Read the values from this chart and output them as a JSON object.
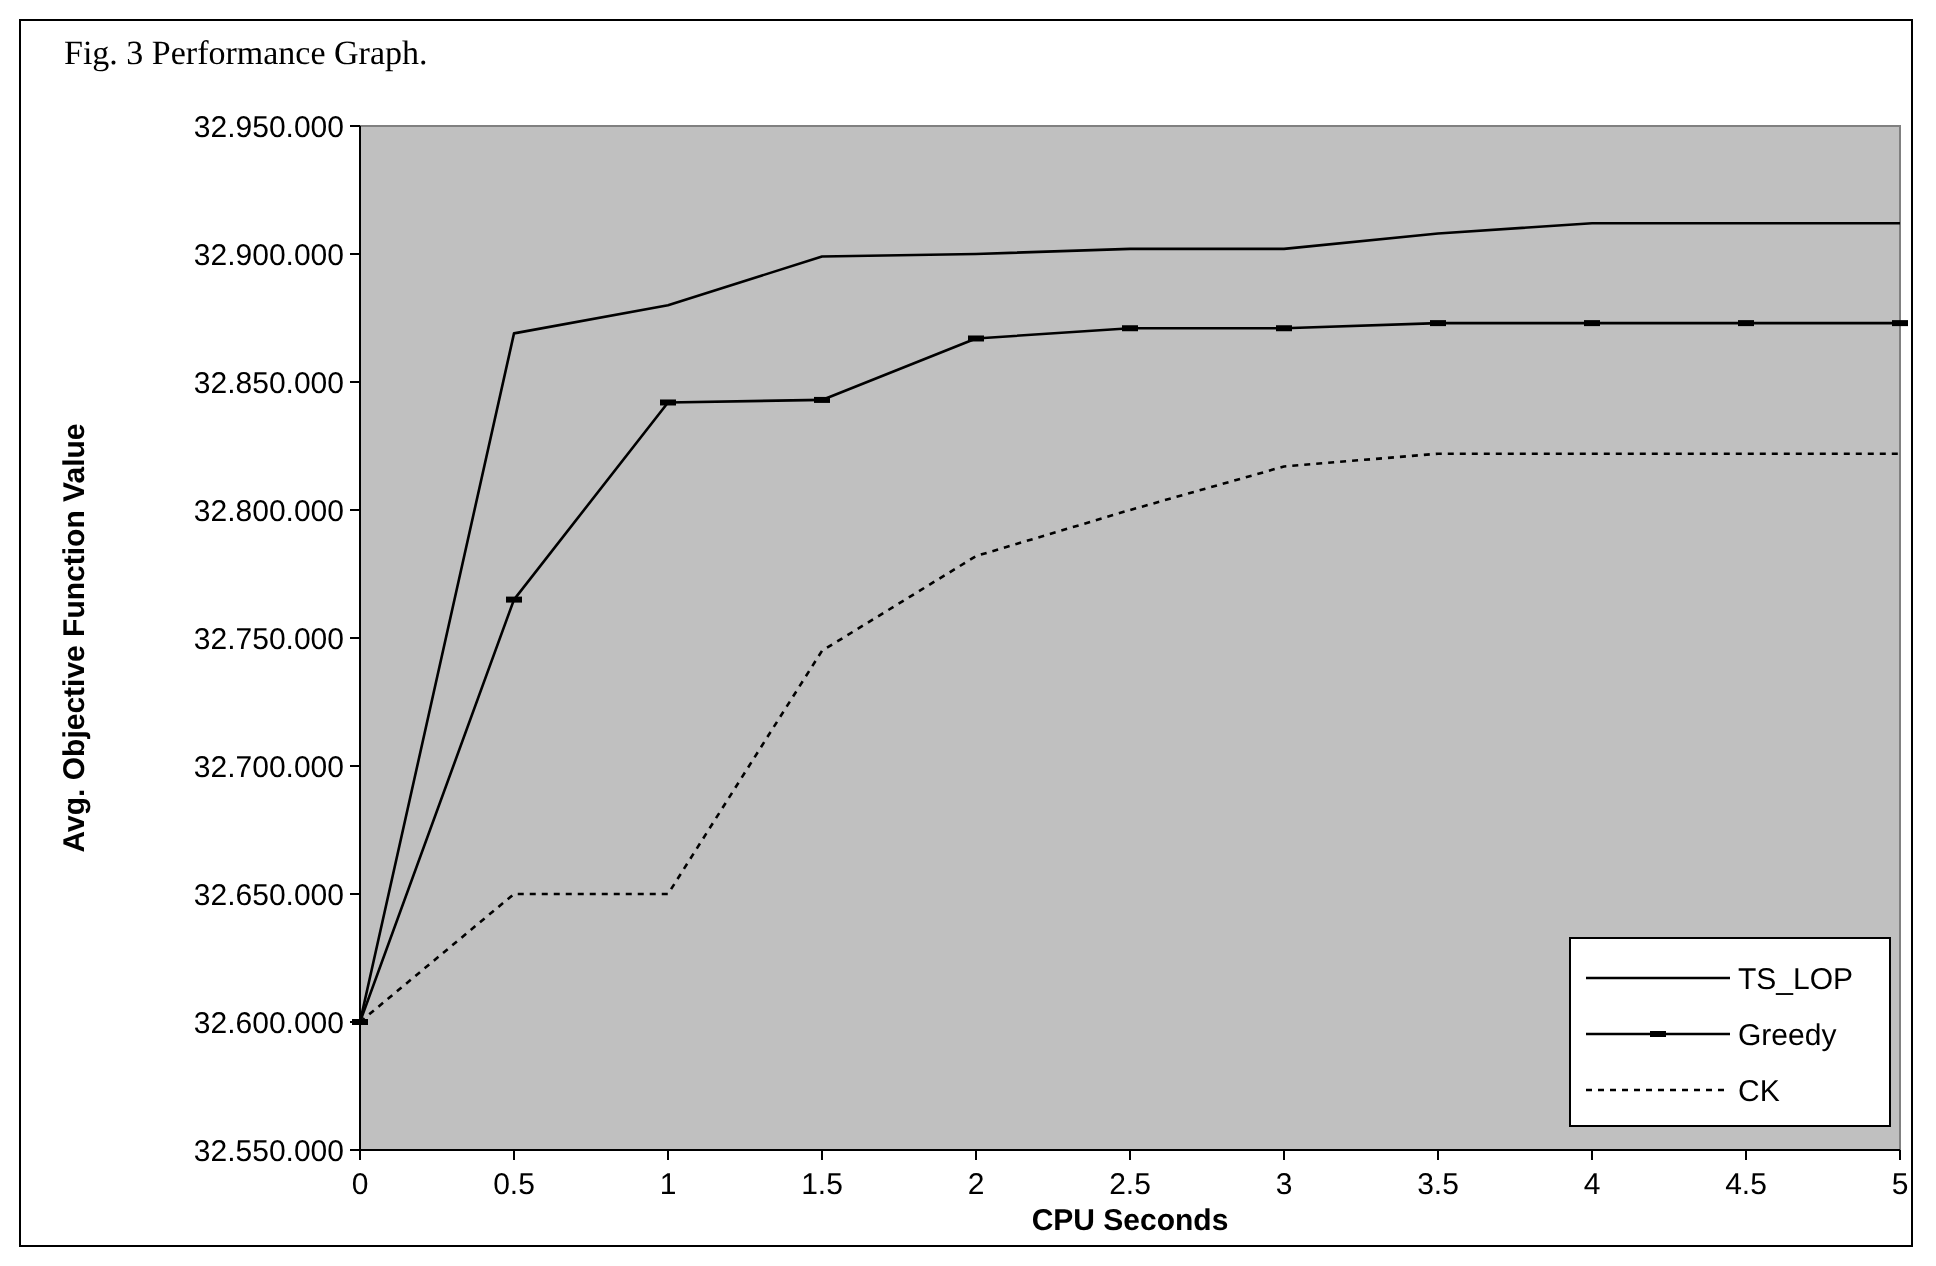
{
  "chart_data": {
    "type": "line",
    "title": "Fig. 3  Performance Graph.",
    "xlabel": "CPU Seconds",
    "ylabel": "Avg. Objective Function Value",
    "x": [
      0,
      0.5,
      1,
      1.5,
      2,
      2.5,
      3,
      3.5,
      4,
      4.5,
      5
    ],
    "series": [
      {
        "name": "TS_LOP",
        "color": "#000000",
        "line_style": "solid",
        "marker": "none",
        "values": [
          32600000,
          32869000,
          32880000,
          32899000,
          32900000,
          32902000,
          32902000,
          32908000,
          32912000,
          32912000,
          32912000
        ]
      },
      {
        "name": "Greedy",
        "color": "#000000",
        "line_style": "solid",
        "marker": "square",
        "values": [
          32600000,
          32765000,
          32842000,
          32843000,
          32867000,
          32871000,
          32871000,
          32873000,
          32873000,
          32873000,
          32873000
        ]
      },
      {
        "name": "CK",
        "color": "#000000",
        "line_style": "dotted",
        "marker": "none",
        "values": [
          32600000,
          32650000,
          32650000,
          32745000,
          32782000,
          32800000,
          32817000,
          32822000,
          32822000,
          32822000,
          32822000
        ]
      }
    ],
    "xlim": [
      0,
      5
    ],
    "xticks": [
      0,
      0.5,
      1,
      1.5,
      2,
      2.5,
      3,
      3.5,
      4,
      4.5,
      5
    ],
    "ylim": [
      32550000,
      32950000
    ],
    "yticks": [
      {
        "value": 32550000,
        "label": "32.550.000"
      },
      {
        "value": 32600000,
        "label": "32.600.000"
      },
      {
        "value": 32650000,
        "label": "32.650.000"
      },
      {
        "value": 32700000,
        "label": "32.700.000"
      },
      {
        "value": 32750000,
        "label": "32.750.000"
      },
      {
        "value": 32800000,
        "label": "32.800.000"
      },
      {
        "value": 32850000,
        "label": "32.850.000"
      },
      {
        "value": 32900000,
        "label": "32.900.000"
      },
      {
        "value": 32950000,
        "label": "32.950.000"
      }
    ],
    "grid": false,
    "legend": "bottom right"
  }
}
